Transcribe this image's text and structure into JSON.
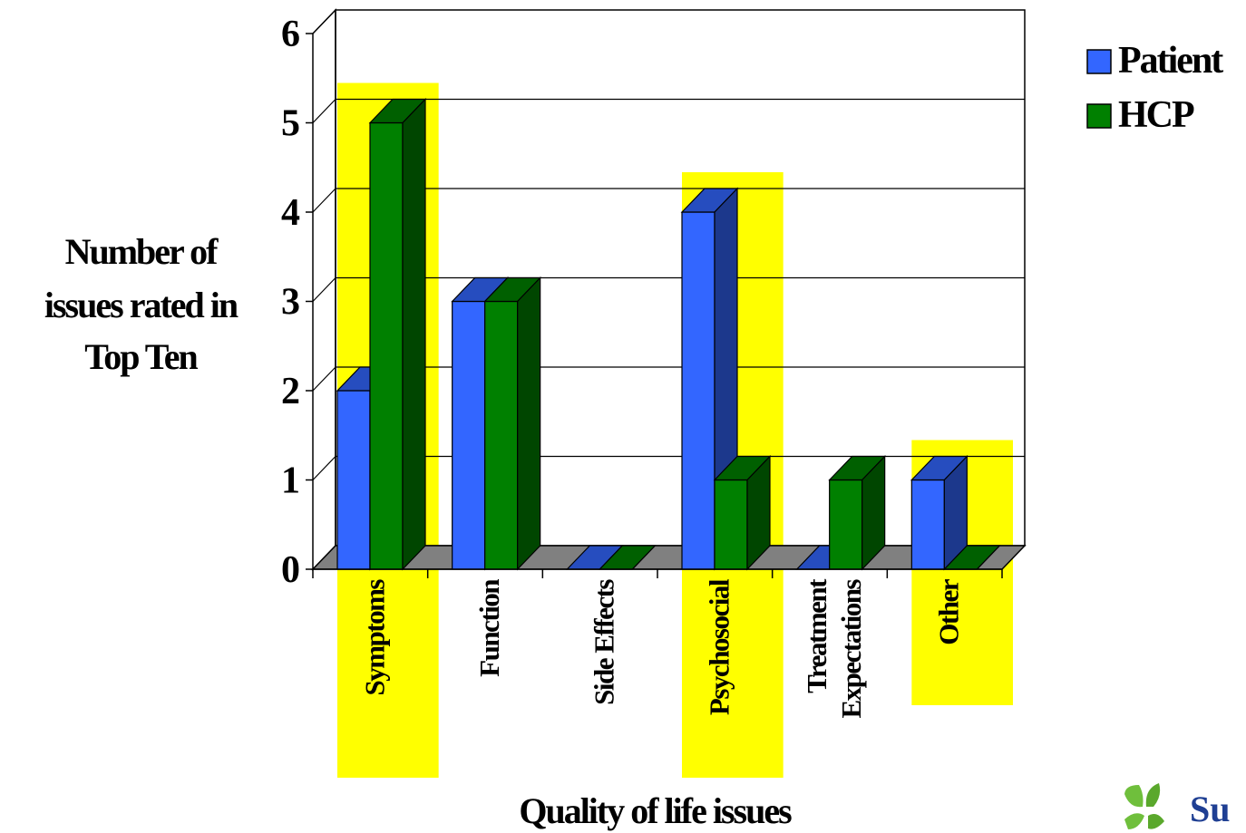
{
  "chart_data": {
    "type": "bar",
    "style": "3d-clustered",
    "categories": [
      "Symptoms",
      "Function",
      "Side Effects",
      "Psychosocial",
      "Treatment Expectations",
      "Other"
    ],
    "category_lines": [
      [
        "Symptoms"
      ],
      [
        "Function"
      ],
      [
        "Side Effects"
      ],
      [
        "Psychosocial"
      ],
      [
        "Treatment",
        "Expectations"
      ],
      [
        "Other"
      ]
    ],
    "highlighted_categories": [
      "Symptoms",
      "Psychosocial",
      "Other"
    ],
    "highlight_color": "#ffff00",
    "series": [
      {
        "name": "Patient",
        "values": [
          2,
          3,
          0,
          4,
          0,
          1
        ],
        "color": "#3366ff"
      },
      {
        "name": "HCP",
        "values": [
          5,
          3,
          0,
          1,
          1,
          0
        ],
        "color": "#008000"
      }
    ],
    "xlabel": "Quality of life issues",
    "ylabel_lines": [
      "Number of",
      "issues rated in",
      "Top Ten"
    ],
    "ylim": [
      0,
      6
    ],
    "yticks": [
      "0",
      "1",
      "2",
      "3",
      "4",
      "5",
      "6"
    ],
    "grid": true,
    "legend_position": "top-right"
  },
  "logo": {
    "text": "Su",
    "icon": "leaf-logo-icon"
  }
}
